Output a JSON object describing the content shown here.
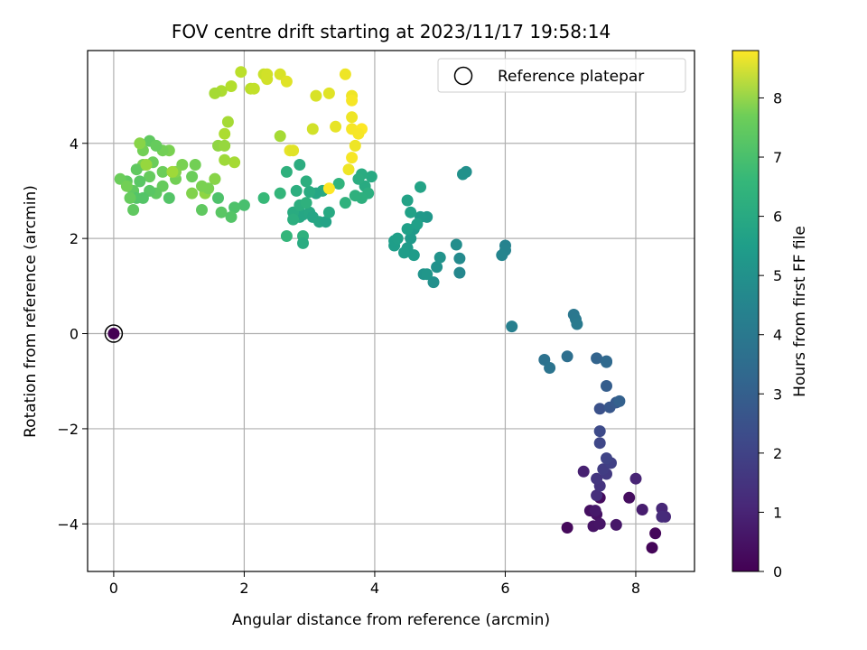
{
  "chart_data": {
    "type": "scatter",
    "title": "FOV centre drift starting at 2023/11/17 19:58:14",
    "xlabel": "Angular distance from reference (arcmin)",
    "ylabel": "Rotation from reference (arcmin)",
    "xlim": [
      -0.4,
      8.9
    ],
    "ylim": [
      -5.0,
      5.95
    ],
    "xticks": [
      0,
      2,
      4,
      6,
      8
    ],
    "yticks": [
      -4,
      -2,
      0,
      2,
      4
    ],
    "xtick_labels": [
      "0",
      "2",
      "4",
      "6",
      "8"
    ],
    "ytick_labels": [
      "−4",
      "−2",
      "0",
      "2",
      "4"
    ],
    "grid": true,
    "legend": {
      "position": "top-right",
      "entries": [
        "Reference platepar"
      ]
    },
    "colorbar": {
      "label": "Hours from first FF file",
      "range": [
        0,
        8.8
      ],
      "ticks": [
        0,
        1,
        2,
        3,
        4,
        5,
        6,
        7,
        8
      ],
      "tick_labels": [
        "0",
        "1",
        "2",
        "3",
        "4",
        "5",
        "6",
        "7",
        "8"
      ],
      "colormap": "viridis"
    },
    "reference_point": {
      "x": 0,
      "y": 0,
      "label": "Reference platepar"
    },
    "points": [
      [
        0.0,
        0.0,
        0.0
      ],
      [
        8.25,
        -4.5,
        0.1
      ],
      [
        8.3,
        -4.2,
        0.15
      ],
      [
        6.95,
        -4.08,
        0.2
      ],
      [
        7.45,
        -3.45,
        0.25
      ],
      [
        7.9,
        -3.45,
        0.3
      ],
      [
        7.3,
        -3.72,
        0.35
      ],
      [
        7.4,
        -3.8,
        0.4
      ],
      [
        7.35,
        -4.05,
        0.45
      ],
      [
        7.45,
        -4.0,
        0.5
      ],
      [
        7.7,
        -4.02,
        0.55
      ],
      [
        7.38,
        -3.72,
        0.6
      ],
      [
        8.1,
        -3.7,
        0.7
      ],
      [
        7.2,
        -2.9,
        0.8
      ],
      [
        8.0,
        -3.05,
        0.9
      ],
      [
        8.4,
        -3.68,
        0.95
      ],
      [
        8.45,
        -3.85,
        1.0
      ],
      [
        8.4,
        -3.85,
        1.1
      ],
      [
        7.4,
        -3.4,
        1.2
      ],
      [
        7.45,
        -3.2,
        1.3
      ],
      [
        7.4,
        -3.05,
        1.4
      ],
      [
        7.55,
        -2.95,
        1.5
      ],
      [
        7.5,
        -2.85,
        1.6
      ],
      [
        7.62,
        -2.72,
        1.7
      ],
      [
        7.55,
        -2.62,
        1.8
      ],
      [
        7.45,
        -2.3,
        1.9
      ],
      [
        7.45,
        -2.05,
        2.0
      ],
      [
        7.45,
        -1.58,
        2.2
      ],
      [
        7.6,
        -1.55,
        2.4
      ],
      [
        7.7,
        -1.45,
        2.5
      ],
      [
        7.55,
        -1.1,
        2.6
      ],
      [
        7.75,
        -1.42,
        2.7
      ],
      [
        7.4,
        -0.52,
        2.8
      ],
      [
        7.55,
        -0.58,
        2.9
      ],
      [
        7.55,
        -0.6,
        3.0
      ],
      [
        6.95,
        -0.48,
        3.2
      ],
      [
        6.6,
        -0.55,
        3.3
      ],
      [
        6.68,
        -0.72,
        3.4
      ],
      [
        7.05,
        0.4,
        3.5
      ],
      [
        7.08,
        0.3,
        3.55
      ],
      [
        7.1,
        0.2,
        3.6
      ],
      [
        6.1,
        0.15,
        3.8
      ],
      [
        6.0,
        1.85,
        3.9
      ],
      [
        6.0,
        1.75,
        3.95
      ],
      [
        5.95,
        1.65,
        4.0
      ],
      [
        5.3,
        1.28,
        4.1
      ],
      [
        5.3,
        1.58,
        4.2
      ],
      [
        5.25,
        1.87,
        4.3
      ],
      [
        4.9,
        1.08,
        4.4
      ],
      [
        4.95,
        1.4,
        4.45
      ],
      [
        5.0,
        1.6,
        4.5
      ],
      [
        4.75,
        1.25,
        4.55
      ],
      [
        4.8,
        1.25,
        4.6
      ],
      [
        4.8,
        2.45,
        4.65
      ],
      [
        4.7,
        2.45,
        4.7
      ],
      [
        4.6,
        2.2,
        4.72
      ],
      [
        4.55,
        2.0,
        4.75
      ],
      [
        4.5,
        1.8,
        4.8
      ],
      [
        4.6,
        1.65,
        4.82
      ],
      [
        4.45,
        1.7,
        4.85
      ],
      [
        4.3,
        1.85,
        4.88
      ],
      [
        4.3,
        1.95,
        4.9
      ],
      [
        4.35,
        2.0,
        4.92
      ],
      [
        4.5,
        2.2,
        4.95
      ],
      [
        4.65,
        2.3,
        4.98
      ],
      [
        4.55,
        2.55,
        5.0
      ],
      [
        4.5,
        2.8,
        5.05
      ],
      [
        4.7,
        3.08,
        5.1
      ],
      [
        5.4,
        3.4,
        4.4
      ],
      [
        5.35,
        3.35,
        4.45
      ],
      [
        3.95,
        3.3,
        5.3
      ],
      [
        3.85,
        3.1,
        5.35
      ],
      [
        3.8,
        3.35,
        5.4
      ],
      [
        3.75,
        3.25,
        5.45
      ],
      [
        3.9,
        2.95,
        5.5
      ],
      [
        3.8,
        2.85,
        5.55
      ],
      [
        3.7,
        2.9,
        5.6
      ],
      [
        3.55,
        2.75,
        5.65
      ],
      [
        3.45,
        3.15,
        5.7
      ],
      [
        3.2,
        3.0,
        5.3
      ],
      [
        3.1,
        2.95,
        5.2
      ],
      [
        3.0,
        2.98,
        5.4
      ],
      [
        2.95,
        3.2,
        5.5
      ],
      [
        2.85,
        3.55,
        5.45
      ],
      [
        2.65,
        3.4,
        5.6
      ],
      [
        2.8,
        3.0,
        5.5
      ],
      [
        2.55,
        2.95,
        5.8
      ],
      [
        2.3,
        2.85,
        5.9
      ],
      [
        2.85,
        2.45,
        5.3
      ],
      [
        2.9,
        2.5,
        5.2
      ],
      [
        3.0,
        2.55,
        5.25
      ],
      [
        3.05,
        2.45,
        5.15
      ],
      [
        3.15,
        2.35,
        5.2
      ],
      [
        3.25,
        2.35,
        5.1
      ],
      [
        3.3,
        2.55,
        5.3
      ],
      [
        2.75,
        2.55,
        5.4
      ],
      [
        2.75,
        2.4,
        5.5
      ],
      [
        2.85,
        2.7,
        5.5
      ],
      [
        2.95,
        2.75,
        5.6
      ],
      [
        2.9,
        2.05,
        5.6
      ],
      [
        2.9,
        1.9,
        5.4
      ],
      [
        2.65,
        2.05,
        5.8
      ],
      [
        2.0,
        2.7,
        6.2
      ],
      [
        1.85,
        2.65,
        6.3
      ],
      [
        1.8,
        2.45,
        6.4
      ],
      [
        1.65,
        2.55,
        6.5
      ],
      [
        1.55,
        3.25,
        6.8
      ],
      [
        1.6,
        2.85,
        6.3
      ],
      [
        1.35,
        2.6,
        6.6
      ],
      [
        1.6,
        3.95,
        7.3
      ],
      [
        1.7,
        3.95,
        7.4
      ],
      [
        1.85,
        3.6,
        7.6
      ],
      [
        1.75,
        4.45,
        7.6
      ],
      [
        1.7,
        4.2,
        7.7
      ],
      [
        1.7,
        3.65,
        7.5
      ],
      [
        1.55,
        3.25,
        7.2
      ],
      [
        1.4,
        2.95,
        7.3
      ],
      [
        1.45,
        3.05,
        7.0
      ],
      [
        1.2,
        3.3,
        6.8
      ],
      [
        1.25,
        3.55,
        6.9
      ],
      [
        1.35,
        3.1,
        7.0
      ],
      [
        1.2,
        2.95,
        7.1
      ],
      [
        1.05,
        3.55,
        7.0
      ],
      [
        0.95,
        3.25,
        6.9
      ],
      [
        0.95,
        3.4,
        7.1
      ],
      [
        0.85,
        3.85,
        7.0
      ],
      [
        0.75,
        3.85,
        6.9
      ],
      [
        0.75,
        3.4,
        6.8
      ],
      [
        0.75,
        3.1,
        6.7
      ],
      [
        0.65,
        2.95,
        6.6
      ],
      [
        0.55,
        3.0,
        6.5
      ],
      [
        0.55,
        3.3,
        6.7
      ],
      [
        0.6,
        3.6,
        6.8
      ],
      [
        0.55,
        4.05,
        6.6
      ],
      [
        0.65,
        3.95,
        6.7
      ],
      [
        0.45,
        3.85,
        6.9
      ],
      [
        0.45,
        3.55,
        7.0
      ],
      [
        0.35,
        3.45,
        6.6
      ],
      [
        0.4,
        3.2,
        6.5
      ],
      [
        0.3,
        3.0,
        6.6
      ],
      [
        0.35,
        2.85,
        6.4
      ],
      [
        0.3,
        2.6,
        6.6
      ],
      [
        0.25,
        2.85,
        6.7
      ],
      [
        0.2,
        3.2,
        6.6
      ],
      [
        0.1,
        3.25,
        6.8
      ],
      [
        0.2,
        3.1,
        6.9
      ],
      [
        0.45,
        2.85,
        6.4
      ],
      [
        0.4,
        4.0,
        7.2
      ],
      [
        0.5,
        3.55,
        7.4
      ],
      [
        0.85,
        2.85,
        6.4
      ],
      [
        0.9,
        3.4,
        7.5
      ],
      [
        1.95,
        5.5,
        7.9
      ],
      [
        1.8,
        5.2,
        7.8
      ],
      [
        1.65,
        5.1,
        7.7
      ],
      [
        1.55,
        5.05,
        7.6
      ],
      [
        2.1,
        5.15,
        7.9
      ],
      [
        2.15,
        5.15,
        8.0
      ],
      [
        2.3,
        5.45,
        8.1
      ],
      [
        2.35,
        5.45,
        8.2
      ],
      [
        2.35,
        5.35,
        8.2
      ],
      [
        2.55,
        5.45,
        8.3
      ],
      [
        2.65,
        5.3,
        8.4
      ],
      [
        2.55,
        4.15,
        7.6
      ],
      [
        2.7,
        3.85,
        8.5
      ],
      [
        2.75,
        3.85,
        8.4
      ],
      [
        3.05,
        4.3,
        8.2
      ],
      [
        3.1,
        5.0,
        8.3
      ],
      [
        3.3,
        5.05,
        8.4
      ],
      [
        3.4,
        4.35,
        8.5
      ],
      [
        3.55,
        5.45,
        8.6
      ],
      [
        3.65,
        5.0,
        8.6
      ],
      [
        3.65,
        4.9,
        8.7
      ],
      [
        3.65,
        4.55,
        8.6
      ],
      [
        3.65,
        4.3,
        8.7
      ],
      [
        3.8,
        4.3,
        8.8
      ],
      [
        3.75,
        4.2,
        8.7
      ],
      [
        3.7,
        3.95,
        8.6
      ],
      [
        3.65,
        3.7,
        8.7
      ],
      [
        3.6,
        3.45,
        8.6
      ],
      [
        3.3,
        3.05,
        8.8
      ]
    ]
  }
}
